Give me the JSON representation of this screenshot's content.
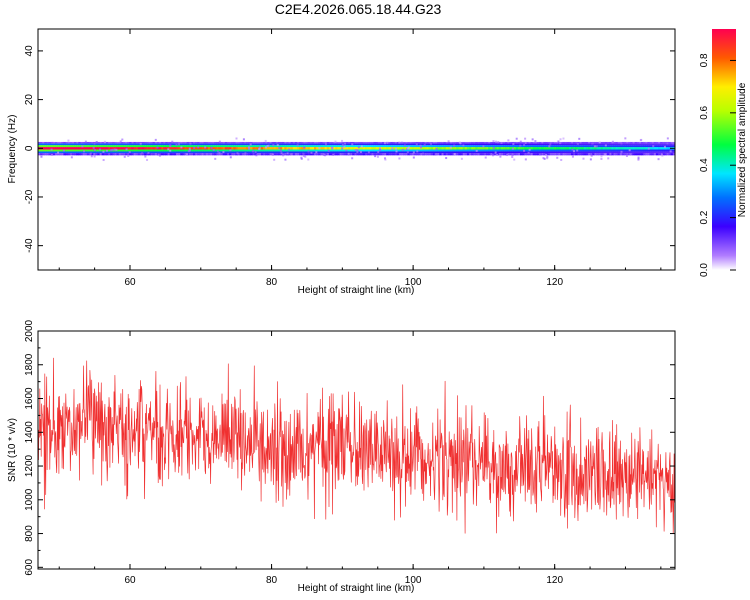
{
  "title": "C2E4.2026.065.18.44.G23",
  "colors": {
    "trace": "#f03030",
    "frame": "#000000",
    "band_core": "#ff2a10"
  },
  "chart_data": [
    {
      "type": "heatmap",
      "xlabel": "Height of straight line (km)",
      "ylabel": "Frequency (Hz)",
      "xlim": [
        47,
        137
      ],
      "ylim": [
        -50,
        49
      ],
      "xticks": [
        60,
        80,
        100,
        120
      ],
      "yticks": [
        -40,
        -20,
        0,
        20,
        40
      ],
      "band": {
        "center_hz": 0,
        "half_width_hz": 2.5,
        "amplitude_start": 1.0,
        "amplitude_end": 0.35
      },
      "colorbar": {
        "label": "Normalized spectral amplitude",
        "range": [
          0,
          0.92
        ],
        "ticks": [
          0.0,
          0.2,
          0.4,
          0.6,
          0.8
        ],
        "tick_labels": [
          "0.0",
          "0.2",
          "0.4",
          "0.6",
          "0.8"
        ]
      }
    },
    {
      "type": "line",
      "xlabel": "Height of straight line (km)",
      "ylabel": "SNR (10 * v/v)",
      "xlim": [
        47,
        137
      ],
      "ylim": [
        590,
        2000
      ],
      "xticks": [
        60,
        80,
        100,
        120
      ],
      "yticks": [
        600,
        800,
        1000,
        1200,
        1400,
        1600,
        1800,
        2000
      ],
      "trend": {
        "x": [
          47,
          137
        ],
        "y": [
          1460,
          1120
        ]
      },
      "noise_std": 150
    }
  ]
}
